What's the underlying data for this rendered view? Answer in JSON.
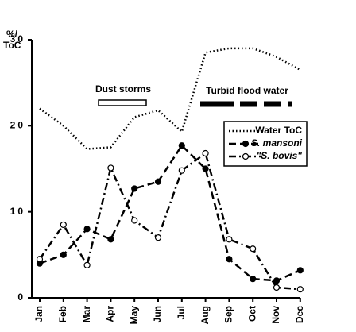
{
  "chart_data": {
    "type": "line",
    "ylabel": [
      "%/",
      "ToC"
    ],
    "categories": [
      "Jan",
      "Feb",
      "Mar",
      "Apr",
      "May",
      "Jun",
      "Jul",
      "Aug",
      "Sep",
      "Oct",
      "Nov",
      "Dec"
    ],
    "series": [
      {
        "name": "Water ToC",
        "color": "#000000",
        "style": "dotted",
        "marker": "none",
        "values": [
          22,
          20,
          17.3,
          17.5,
          21,
          21.8,
          19.3,
          28.5,
          29,
          29,
          28,
          26.5
        ]
      },
      {
        "name": "S. mansoni",
        "color": "#000000",
        "style": "dashed",
        "marker": "filled",
        "values": [
          4,
          5,
          8,
          6.8,
          12.7,
          13.5,
          17.7,
          15,
          4.5,
          2.2,
          2,
          3.2
        ]
      },
      {
        "name": "\"S. bovis\"",
        "color": "#000000",
        "style": "dashdot",
        "marker": "open",
        "values": [
          4.5,
          8.5,
          3.8,
          15.1,
          9,
          7,
          14.8,
          16.8,
          6.8,
          5.7,
          1.2,
          1
        ]
      }
    ],
    "annotations": [
      "Dust storms",
      "Turbid flood water"
    ],
    "ylim": [
      0,
      30
    ],
    "yticks": [
      0,
      10,
      20,
      30
    ],
    "grid": false,
    "legend": "upper right"
  }
}
